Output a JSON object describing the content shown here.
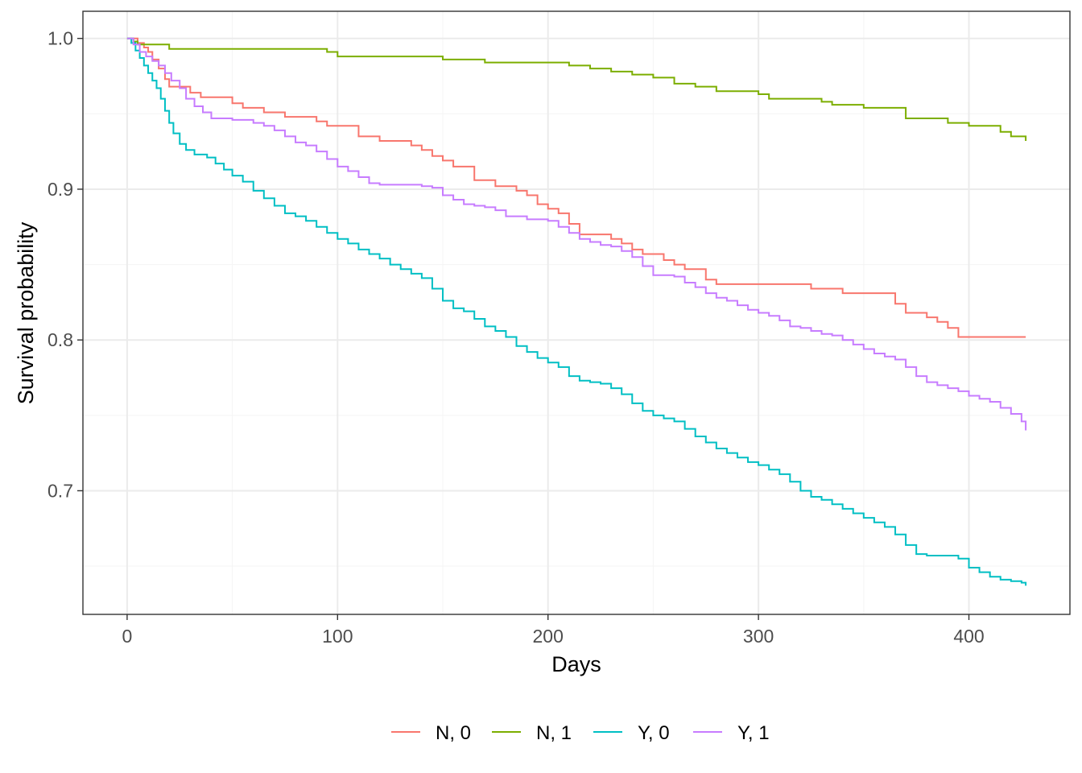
{
  "chart_data": {
    "type": "line",
    "step": true,
    "xlabel": "Days",
    "ylabel": "Survival probability",
    "xlim": [
      -21,
      448
    ],
    "ylim": [
      0.618,
      1.018
    ],
    "x_ticks": [
      0,
      100,
      200,
      300,
      400
    ],
    "x_tick_labels": [
      "0",
      "100",
      "200",
      "300",
      "400"
    ],
    "y_ticks": [
      0.7,
      0.8,
      0.9,
      1.0
    ],
    "y_tick_labels": [
      "0.7",
      "0.8",
      "0.9",
      "1.0"
    ],
    "grid": true,
    "legend_position": "bottom",
    "series": [
      {
        "name": "N, 0",
        "color": "#F8766D",
        "x": [
          0,
          5,
          8,
          10,
          12,
          15,
          18,
          20,
          30,
          35,
          50,
          55,
          65,
          75,
          90,
          95,
          110,
          120,
          135,
          140,
          145,
          150,
          155,
          165,
          175,
          185,
          190,
          195,
          200,
          205,
          210,
          215,
          230,
          235,
          240,
          245,
          255,
          260,
          265,
          275,
          280,
          320,
          325,
          330,
          340,
          355,
          365,
          370,
          375,
          380,
          385,
          390,
          395,
          427
        ],
        "y": [
          1.0,
          0.997,
          0.994,
          0.991,
          0.986,
          0.98,
          0.973,
          0.968,
          0.964,
          0.961,
          0.957,
          0.954,
          0.951,
          0.948,
          0.945,
          0.942,
          0.935,
          0.932,
          0.929,
          0.926,
          0.922,
          0.919,
          0.915,
          0.906,
          0.902,
          0.899,
          0.896,
          0.89,
          0.887,
          0.884,
          0.877,
          0.87,
          0.867,
          0.864,
          0.86,
          0.857,
          0.853,
          0.85,
          0.847,
          0.84,
          0.837,
          0.837,
          0.834,
          0.834,
          0.831,
          0.831,
          0.824,
          0.818,
          0.818,
          0.815,
          0.812,
          0.808,
          0.802,
          0.802
        ]
      },
      {
        "name": "N, 1",
        "color": "#7CAE00",
        "x": [
          0,
          3,
          5,
          20,
          40,
          60,
          80,
          95,
          100,
          120,
          145,
          150,
          170,
          180,
          200,
          210,
          220,
          230,
          240,
          250,
          255,
          260,
          270,
          280,
          300,
          305,
          320,
          330,
          335,
          350,
          360,
          370,
          380,
          390,
          400,
          410,
          415,
          420,
          427
        ],
        "y": [
          1.0,
          0.998,
          0.996,
          0.993,
          0.993,
          0.993,
          0.993,
          0.991,
          0.988,
          0.988,
          0.988,
          0.986,
          0.984,
          0.984,
          0.984,
          0.982,
          0.98,
          0.978,
          0.976,
          0.974,
          0.974,
          0.97,
          0.968,
          0.965,
          0.963,
          0.96,
          0.96,
          0.958,
          0.956,
          0.954,
          0.954,
          0.947,
          0.947,
          0.944,
          0.942,
          0.942,
          0.938,
          0.935,
          0.932
        ]
      },
      {
        "name": "Y, 0",
        "color": "#00BFC4",
        "x": [
          0,
          2,
          4,
          6,
          8,
          10,
          12,
          14,
          16,
          18,
          20,
          22,
          25,
          28,
          32,
          38,
          42,
          46,
          50,
          55,
          60,
          65,
          70,
          75,
          80,
          85,
          90,
          95,
          100,
          105,
          110,
          115,
          120,
          125,
          130,
          135,
          140,
          145,
          150,
          155,
          160,
          165,
          170,
          175,
          180,
          185,
          190,
          195,
          200,
          205,
          210,
          215,
          220,
          225,
          230,
          235,
          240,
          245,
          250,
          255,
          260,
          265,
          270,
          275,
          280,
          285,
          290,
          295,
          300,
          305,
          310,
          315,
          320,
          325,
          330,
          335,
          340,
          345,
          350,
          355,
          360,
          365,
          370,
          375,
          380,
          385,
          390,
          395,
          400,
          405,
          410,
          415,
          420,
          425,
          427
        ],
        "y": [
          1.0,
          0.997,
          0.992,
          0.987,
          0.982,
          0.977,
          0.972,
          0.967,
          0.96,
          0.952,
          0.944,
          0.937,
          0.93,
          0.926,
          0.923,
          0.921,
          0.917,
          0.913,
          0.909,
          0.905,
          0.899,
          0.894,
          0.889,
          0.884,
          0.882,
          0.879,
          0.875,
          0.871,
          0.867,
          0.864,
          0.86,
          0.857,
          0.854,
          0.85,
          0.847,
          0.844,
          0.841,
          0.834,
          0.826,
          0.821,
          0.819,
          0.814,
          0.809,
          0.806,
          0.802,
          0.796,
          0.792,
          0.788,
          0.785,
          0.782,
          0.776,
          0.773,
          0.772,
          0.771,
          0.768,
          0.764,
          0.758,
          0.753,
          0.75,
          0.748,
          0.746,
          0.741,
          0.736,
          0.732,
          0.728,
          0.725,
          0.722,
          0.719,
          0.717,
          0.714,
          0.711,
          0.706,
          0.7,
          0.696,
          0.694,
          0.691,
          0.688,
          0.685,
          0.682,
          0.679,
          0.676,
          0.671,
          0.664,
          0.658,
          0.657,
          0.657,
          0.657,
          0.655,
          0.649,
          0.646,
          0.643,
          0.641,
          0.64,
          0.639,
          0.637
        ]
      },
      {
        "name": "Y, 1",
        "color": "#C77CFF",
        "x": [
          0,
          3,
          6,
          9,
          12,
          15,
          18,
          21,
          25,
          28,
          32,
          36,
          40,
          50,
          60,
          65,
          70,
          75,
          80,
          85,
          90,
          95,
          100,
          105,
          110,
          115,
          120,
          130,
          140,
          145,
          150,
          155,
          160,
          165,
          170,
          175,
          180,
          190,
          200,
          205,
          210,
          215,
          220,
          225,
          230,
          235,
          240,
          245,
          250,
          260,
          265,
          270,
          275,
          280,
          285,
          290,
          295,
          300,
          305,
          310,
          315,
          320,
          325,
          330,
          335,
          340,
          345,
          350,
          355,
          360,
          365,
          370,
          375,
          380,
          385,
          390,
          395,
          400,
          405,
          410,
          415,
          420,
          425,
          427
        ],
        "y": [
          1.0,
          0.996,
          0.991,
          0.988,
          0.985,
          0.982,
          0.977,
          0.972,
          0.967,
          0.96,
          0.955,
          0.951,
          0.947,
          0.946,
          0.944,
          0.942,
          0.939,
          0.935,
          0.931,
          0.929,
          0.925,
          0.92,
          0.915,
          0.912,
          0.908,
          0.904,
          0.903,
          0.903,
          0.902,
          0.901,
          0.896,
          0.893,
          0.89,
          0.889,
          0.888,
          0.886,
          0.882,
          0.88,
          0.879,
          0.875,
          0.871,
          0.867,
          0.865,
          0.863,
          0.862,
          0.859,
          0.855,
          0.849,
          0.843,
          0.842,
          0.838,
          0.835,
          0.831,
          0.828,
          0.826,
          0.823,
          0.82,
          0.818,
          0.816,
          0.813,
          0.809,
          0.808,
          0.806,
          0.804,
          0.803,
          0.8,
          0.797,
          0.794,
          0.791,
          0.789,
          0.787,
          0.782,
          0.776,
          0.772,
          0.77,
          0.768,
          0.766,
          0.763,
          0.761,
          0.759,
          0.755,
          0.751,
          0.746,
          0.74
        ]
      }
    ]
  },
  "colors": {
    "panel_border": "#333333",
    "grid_major": "#EBEBEB",
    "grid_minor": "#F5F5F5",
    "tick_mark": "#333333",
    "tick_label": "#4D4D4D"
  }
}
